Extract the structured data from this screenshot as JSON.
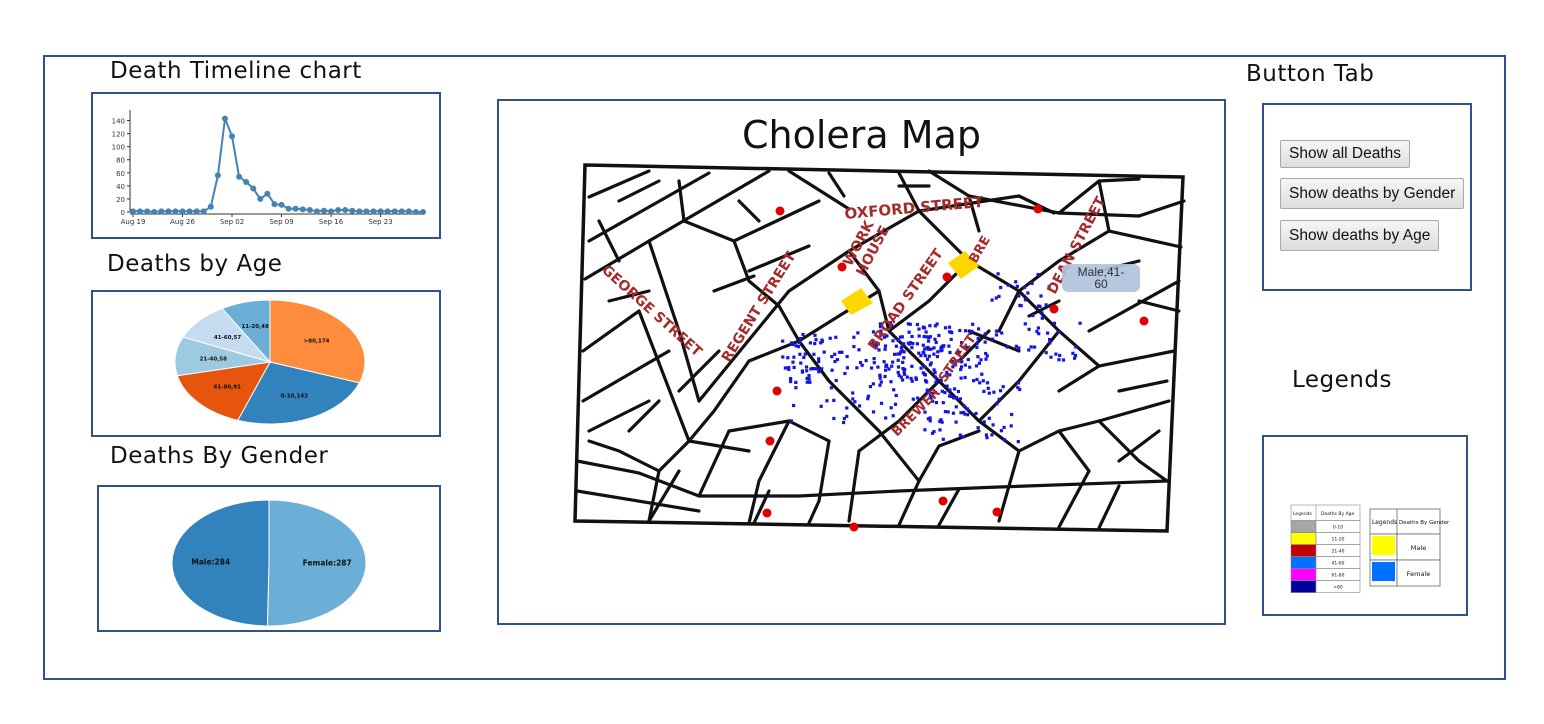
{
  "headings": {
    "timeline": "Death Timeline chart",
    "age": "Deaths by Age",
    "gender": "Deaths By Gender",
    "buttons": "Button Tab",
    "legends": "Legends"
  },
  "map": {
    "title": "Cholera Map",
    "streets": [
      "OXFORD STREET",
      "WORK",
      "HOUSE",
      "GEORGE STREET",
      "REGENT STREET",
      "BROAD STREET",
      "DEAN STREET",
      "BREWER",
      "STREET",
      "BRE",
      "BRE"
    ],
    "tooltip_line1": "Male,41-",
    "tooltip_line2": "60"
  },
  "buttons": {
    "all_deaths": "Show all Deaths",
    "by_gender": "Show deaths by Gender",
    "by_age": "Show deaths by Age"
  },
  "legend_age": {
    "header_left": "Legends",
    "header_right": "Deaths By Age",
    "rows": [
      {
        "color": "#a6a6a6",
        "label": "0-10"
      },
      {
        "color": "#ffff00",
        "label": "11-20"
      },
      {
        "color": "#c00000",
        "label": "21-40"
      },
      {
        "color": "#0070ff",
        "label": "41-60"
      },
      {
        "color": "#ff00ff",
        "label": "61-80"
      },
      {
        "color": "#000099",
        "label": ">80"
      }
    ]
  },
  "legend_gender": {
    "header_left": "Legends",
    "header_right": "Deaths By Gender",
    "rows": [
      {
        "color": "#ffff00",
        "label": "Male"
      },
      {
        "color": "#0070ff",
        "label": "Female"
      }
    ]
  },
  "chart_data": [
    {
      "type": "line",
      "title": "Death Timeline chart",
      "x_tick_labels": [
        "Aug 19",
        "Aug 26",
        "Sep 02",
        "Sep 09",
        "Sep 16",
        "Sep 23"
      ],
      "y_ticks": [
        0,
        20,
        40,
        60,
        80,
        100,
        120,
        140
      ],
      "ylim": [
        0,
        150
      ],
      "x": [
        "Aug 19",
        "Aug 20",
        "Aug 21",
        "Aug 22",
        "Aug 23",
        "Aug 24",
        "Aug 25",
        "Aug 26",
        "Aug 27",
        "Aug 28",
        "Aug 29",
        "Aug 30",
        "Aug 31",
        "Sep 01",
        "Sep 02",
        "Sep 03",
        "Sep 04",
        "Sep 05",
        "Sep 06",
        "Sep 07",
        "Sep 08",
        "Sep 09",
        "Sep 10",
        "Sep 11",
        "Sep 12",
        "Sep 13",
        "Sep 14",
        "Sep 15",
        "Sep 16",
        "Sep 17",
        "Sep 18",
        "Sep 19",
        "Sep 20",
        "Sep 21",
        "Sep 22",
        "Sep 23",
        "Sep 24",
        "Sep 25",
        "Sep 26",
        "Sep 27",
        "Sep 28",
        "Sep 29"
      ],
      "y": [
        1,
        1,
        1,
        0,
        1,
        1,
        1,
        1,
        1,
        1,
        1,
        8,
        56,
        143,
        116,
        54,
        46,
        36,
        20,
        28,
        12,
        11,
        5,
        5,
        4,
        3,
        1,
        2,
        1,
        3,
        3,
        2,
        1,
        1,
        1,
        1,
        1,
        1,
        1,
        1,
        0,
        0
      ],
      "grid": false,
      "color": "#4682b4"
    },
    {
      "type": "pie",
      "title": "Deaths by Age",
      "labels": [
        ">80,174",
        "0-10,143",
        "61-80,91",
        "21-40,58",
        "41-60,57",
        "11-20,48"
      ],
      "values": [
        174,
        143,
        91,
        58,
        57,
        48
      ],
      "colors": [
        "#fd8d3c",
        "#3182bd",
        "#e6550d",
        "#9ecae1",
        "#c6dbef",
        "#6baed6"
      ]
    },
    {
      "type": "pie",
      "title": "Deaths By Gender",
      "labels": [
        "Female:287",
        "Male:284"
      ],
      "values": [
        287,
        284
      ],
      "colors": [
        "#6baed6",
        "#3182bd"
      ]
    }
  ]
}
